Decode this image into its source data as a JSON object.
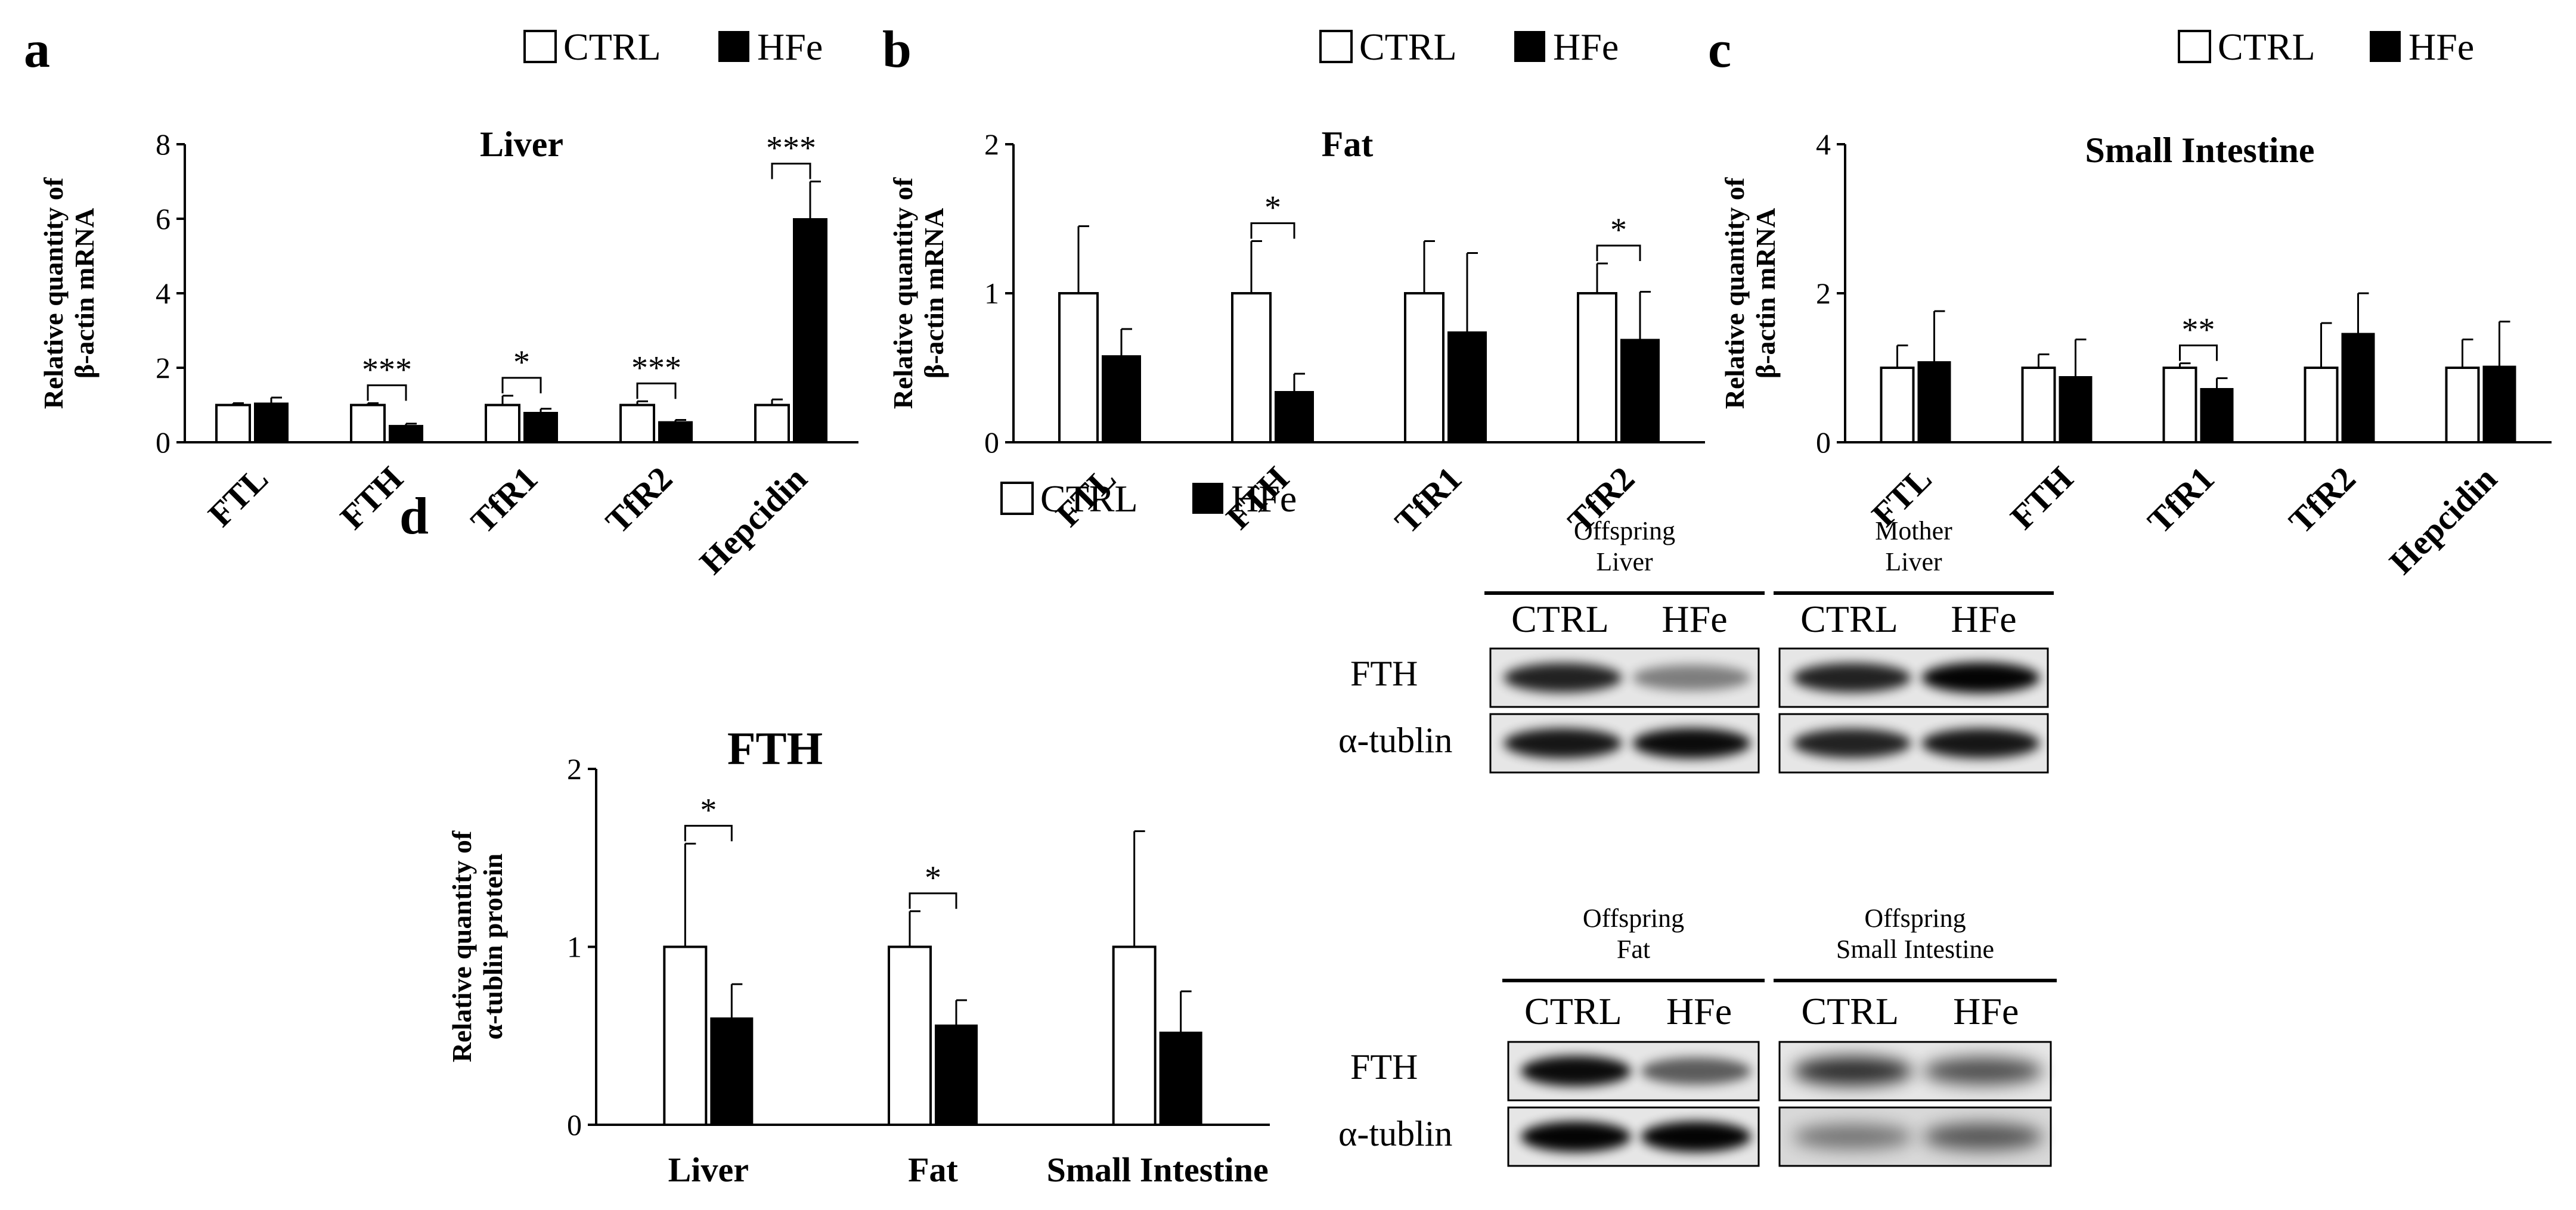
{
  "legend": {
    "ctrl": "CTRL",
    "hfe": "HFe"
  },
  "colors": {
    "ctrl": "#ffffff",
    "hfe": "#000000",
    "stroke": "#000000"
  },
  "chart_data": [
    {
      "panel": "a",
      "type": "bar",
      "title": "Liver",
      "ylabel": "Relative quantity of β-actin mRNA",
      "categories": [
        "FTL",
        "FTH",
        "TfR1",
        "TfR2",
        "Hepcidin"
      ],
      "ylim": [
        0,
        8
      ],
      "yticks": [
        0,
        2,
        4,
        6,
        8
      ],
      "series": [
        {
          "name": "CTRL",
          "values": [
            1.0,
            1.0,
            1.0,
            1.0,
            1.0
          ],
          "errors": [
            0.05,
            0.05,
            0.25,
            0.1,
            0.15
          ]
        },
        {
          "name": "HFe",
          "values": [
            1.05,
            0.45,
            0.8,
            0.55,
            6.0
          ],
          "errors": [
            0.15,
            0.05,
            0.1,
            0.05,
            1.0
          ]
        }
      ],
      "significance": [
        {
          "category": "FTH",
          "label": "***"
        },
        {
          "category": "TfR1",
          "label": "*"
        },
        {
          "category": "TfR2",
          "label": "***"
        },
        {
          "category": "Hepcidin",
          "label": "***"
        }
      ]
    },
    {
      "panel": "b",
      "type": "bar",
      "title": "Fat",
      "ylabel": "Relative quantity of β-actin mRNA",
      "categories": [
        "FTL",
        "FTH",
        "TfR1",
        "TfR2"
      ],
      "ylim": [
        0,
        2
      ],
      "yticks": [
        0,
        1,
        2
      ],
      "series": [
        {
          "name": "CTRL",
          "values": [
            1.0,
            1.0,
            1.0,
            1.0
          ],
          "errors": [
            0.45,
            0.35,
            0.35,
            0.2
          ]
        },
        {
          "name": "HFe",
          "values": [
            0.58,
            0.34,
            0.74,
            0.69
          ],
          "errors": [
            0.18,
            0.12,
            0.53,
            0.32
          ]
        }
      ],
      "significance": [
        {
          "category": "FTH",
          "label": "*"
        },
        {
          "category": "TfR2",
          "label": "*"
        }
      ]
    },
    {
      "panel": "c",
      "type": "bar",
      "title": "Small Intestine",
      "ylabel": "Relative quantity of β-actin mRNA",
      "categories": [
        "FTL",
        "FTH",
        "TfR1",
        "TfR2",
        "Hepcidin"
      ],
      "ylim": [
        0,
        4
      ],
      "yticks": [
        0,
        2,
        4
      ],
      "series": [
        {
          "name": "CTRL",
          "values": [
            1.0,
            1.0,
            1.0,
            1.0,
            1.0
          ],
          "errors": [
            0.3,
            0.18,
            0.06,
            0.6,
            0.38
          ]
        },
        {
          "name": "HFe",
          "values": [
            1.08,
            0.88,
            0.72,
            1.46,
            1.02
          ],
          "errors": [
            0.68,
            0.5,
            0.14,
            0.54,
            0.6
          ]
        }
      ],
      "significance": [
        {
          "category": "TfR1",
          "label": "**"
        }
      ]
    },
    {
      "panel": "d",
      "type": "bar",
      "title": "FTH",
      "ylabel": "Relative quantity of α-tublin protein",
      "categories": [
        "Liver",
        "Fat",
        "Small Intestine"
      ],
      "ylim": [
        0,
        2
      ],
      "yticks": [
        0,
        1,
        2
      ],
      "series": [
        {
          "name": "CTRL",
          "values": [
            1.0,
            1.0,
            1.0
          ],
          "errors": [
            0.58,
            0.2,
            0.65
          ]
        },
        {
          "name": "HFe",
          "values": [
            0.6,
            0.56,
            0.52
          ],
          "errors": [
            0.19,
            0.14,
            0.23
          ]
        }
      ],
      "significance": [
        {
          "category": "Liver",
          "label": "*"
        },
        {
          "category": "Fat",
          "label": "*"
        }
      ]
    }
  ],
  "western_blot": {
    "groups": [
      {
        "header": [
          "Offspring",
          "Liver"
        ],
        "lanes": [
          "CTRL",
          "HFe"
        ]
      },
      {
        "header": [
          "Mother",
          "Liver"
        ],
        "lanes": [
          "CTRL",
          "HFe"
        ]
      },
      {
        "header": [
          "Offspring",
          "Fat"
        ],
        "lanes": [
          "CTRL",
          "HFe"
        ]
      },
      {
        "header": [
          "Offspring",
          "Small Intestine"
        ],
        "lanes": [
          "CTRL",
          "HFe"
        ]
      }
    ],
    "rows": [
      "FTH",
      "α-tublin"
    ]
  }
}
